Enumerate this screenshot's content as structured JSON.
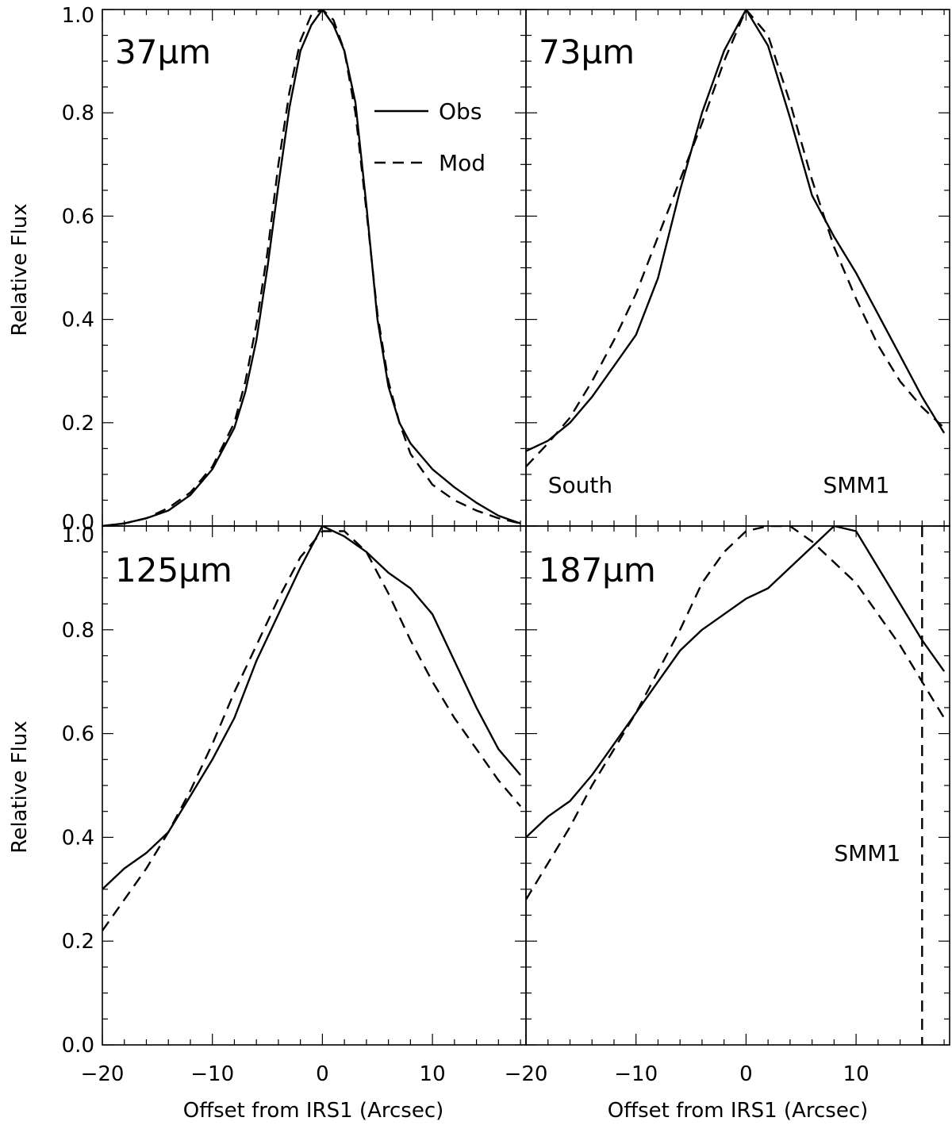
{
  "figure": {
    "ylabel": "Relative Flux",
    "xlabel": "Offset from IRS1 (Arcsec)"
  },
  "chart_data": [
    {
      "type": "line",
      "panel": "37µm",
      "xlim": [
        -20,
        18.5
      ],
      "ylim": [
        0,
        1
      ],
      "xticks": [],
      "yticks": [
        "0.0",
        "0.2",
        "0.4",
        "0.6",
        "0.8",
        "1.0"
      ],
      "legend": {
        "position": "top-right",
        "entries": [
          {
            "label": "Obs",
            "style": "solid"
          },
          {
            "label": "Mod",
            "style": "dashed"
          }
        ]
      },
      "annotations": [],
      "vline": null,
      "series": [
        {
          "name": "Obs",
          "style": "solid",
          "points": [
            [
              -20,
              0.0
            ],
            [
              -18,
              0.005
            ],
            [
              -16,
              0.015
            ],
            [
              -14,
              0.03
            ],
            [
              -12,
              0.06
            ],
            [
              -10,
              0.11
            ],
            [
              -8,
              0.19
            ],
            [
              -7,
              0.26
            ],
            [
              -6,
              0.36
            ],
            [
              -5,
              0.5
            ],
            [
              -4,
              0.66
            ],
            [
              -3,
              0.81
            ],
            [
              -2,
              0.92
            ],
            [
              -1,
              0.97
            ],
            [
              0,
              1.0
            ],
            [
              1,
              0.97
            ],
            [
              2,
              0.92
            ],
            [
              3,
              0.82
            ],
            [
              4,
              0.62
            ],
            [
              5,
              0.4
            ],
            [
              6,
              0.27
            ],
            [
              7,
              0.2
            ],
            [
              8,
              0.16
            ],
            [
              10,
              0.11
            ],
            [
              12,
              0.075
            ],
            [
              14,
              0.045
            ],
            [
              16,
              0.02
            ],
            [
              18,
              0.005
            ]
          ]
        },
        {
          "name": "Mod",
          "style": "dashed",
          "points": [
            [
              -20,
              0.0
            ],
            [
              -18,
              0.005
            ],
            [
              -16,
              0.015
            ],
            [
              -14,
              0.035
            ],
            [
              -12,
              0.065
            ],
            [
              -10,
              0.115
            ],
            [
              -8,
              0.2
            ],
            [
              -7,
              0.28
            ],
            [
              -6,
              0.39
            ],
            [
              -5,
              0.53
            ],
            [
              -4,
              0.7
            ],
            [
              -3,
              0.84
            ],
            [
              -2,
              0.94
            ],
            [
              -1,
              0.99
            ],
            [
              0,
              1.0
            ],
            [
              1,
              0.98
            ],
            [
              2,
              0.92
            ],
            [
              3,
              0.8
            ],
            [
              4,
              0.61
            ],
            [
              5,
              0.41
            ],
            [
              6,
              0.28
            ],
            [
              7,
              0.2
            ],
            [
              8,
              0.14
            ],
            [
              10,
              0.08
            ],
            [
              12,
              0.05
            ],
            [
              14,
              0.03
            ],
            [
              16,
              0.015
            ],
            [
              18,
              0.005
            ]
          ]
        }
      ]
    },
    {
      "type": "line",
      "panel": "73µm",
      "xlim": [
        -20,
        18.5
      ],
      "ylim": [
        0,
        1
      ],
      "xticks": [],
      "yticks": [],
      "legend": null,
      "annotations": [
        {
          "text": "South",
          "x": -18,
          "y": 0.08
        },
        {
          "text": "SMM1",
          "x": 7,
          "y": 0.08
        }
      ],
      "vline": null,
      "series": [
        {
          "name": "Obs",
          "style": "solid",
          "points": [
            [
              -20,
              0.145
            ],
            [
              -18,
              0.165
            ],
            [
              -16,
              0.2
            ],
            [
              -14,
              0.25
            ],
            [
              -12,
              0.31
            ],
            [
              -10,
              0.37
            ],
            [
              -8,
              0.48
            ],
            [
              -6,
              0.65
            ],
            [
              -4,
              0.8
            ],
            [
              -2,
              0.92
            ],
            [
              0,
              1.0
            ],
            [
              2,
              0.93
            ],
            [
              4,
              0.79
            ],
            [
              6,
              0.64
            ],
            [
              8,
              0.56
            ],
            [
              10,
              0.49
            ],
            [
              12,
              0.41
            ],
            [
              14,
              0.33
            ],
            [
              16,
              0.25
            ],
            [
              18,
              0.18
            ]
          ]
        },
        {
          "name": "Mod",
          "style": "dashed",
          "points": [
            [
              -20,
              0.115
            ],
            [
              -18,
              0.16
            ],
            [
              -16,
              0.21
            ],
            [
              -14,
              0.28
            ],
            [
              -12,
              0.36
            ],
            [
              -10,
              0.45
            ],
            [
              -8,
              0.56
            ],
            [
              -6,
              0.67
            ],
            [
              -4,
              0.78
            ],
            [
              -2,
              0.9
            ],
            [
              0,
              1.0
            ],
            [
              2,
              0.95
            ],
            [
              4,
              0.82
            ],
            [
              6,
              0.67
            ],
            [
              8,
              0.54
            ],
            [
              10,
              0.44
            ],
            [
              12,
              0.35
            ],
            [
              14,
              0.28
            ],
            [
              16,
              0.23
            ],
            [
              18,
              0.19
            ]
          ]
        }
      ]
    },
    {
      "type": "line",
      "panel": "125µm",
      "xlim": [
        -20,
        18.5
      ],
      "ylim": [
        0,
        1
      ],
      "xticks": [
        "−20",
        "−10",
        "0",
        "10"
      ],
      "yticks": [
        "0.0",
        "0.2",
        "0.4",
        "0.6",
        "0.8",
        "1.0"
      ],
      "legend": null,
      "annotations": [],
      "vline": null,
      "series": [
        {
          "name": "Obs",
          "style": "solid",
          "points": [
            [
              -20,
              0.3
            ],
            [
              -18,
              0.34
            ],
            [
              -16,
              0.37
            ],
            [
              -14,
              0.41
            ],
            [
              -12,
              0.48
            ],
            [
              -10,
              0.55
            ],
            [
              -8,
              0.63
            ],
            [
              -6,
              0.74
            ],
            [
              -4,
              0.83
            ],
            [
              -2,
              0.92
            ],
            [
              0,
              1.0
            ],
            [
              2,
              0.98
            ],
            [
              4,
              0.95
            ],
            [
              6,
              0.91
            ],
            [
              8,
              0.88
            ],
            [
              10,
              0.83
            ],
            [
              12,
              0.74
            ],
            [
              14,
              0.65
            ],
            [
              16,
              0.57
            ],
            [
              18,
              0.52
            ]
          ]
        },
        {
          "name": "Mod",
          "style": "dashed",
          "points": [
            [
              -20,
              0.22
            ],
            [
              -18,
              0.28
            ],
            [
              -16,
              0.34
            ],
            [
              -14,
              0.41
            ],
            [
              -12,
              0.49
            ],
            [
              -10,
              0.58
            ],
            [
              -8,
              0.68
            ],
            [
              -6,
              0.77
            ],
            [
              -4,
              0.86
            ],
            [
              -2,
              0.94
            ],
            [
              0,
              0.99
            ],
            [
              2,
              0.99
            ],
            [
              4,
              0.95
            ],
            [
              6,
              0.87
            ],
            [
              8,
              0.78
            ],
            [
              10,
              0.7
            ],
            [
              12,
              0.63
            ],
            [
              14,
              0.57
            ],
            [
              16,
              0.51
            ],
            [
              18,
              0.46
            ]
          ]
        }
      ]
    },
    {
      "type": "line",
      "panel": "187µm",
      "xlim": [
        -20,
        18.5
      ],
      "ylim": [
        0,
        1
      ],
      "xticks": [
        "−20",
        "−10",
        "0",
        "10"
      ],
      "yticks": [],
      "legend": null,
      "annotations": [
        {
          "text": "SMM1",
          "x": 8,
          "y": 0.37
        }
      ],
      "vline": {
        "x": 16,
        "style": "dashed"
      },
      "series": [
        {
          "name": "Obs",
          "style": "solid",
          "points": [
            [
              -20,
              0.4
            ],
            [
              -18,
              0.44
            ],
            [
              -16,
              0.47
            ],
            [
              -14,
              0.52
            ],
            [
              -12,
              0.58
            ],
            [
              -10,
              0.64
            ],
            [
              -8,
              0.7
            ],
            [
              -6,
              0.76
            ],
            [
              -4,
              0.8
            ],
            [
              -2,
              0.83
            ],
            [
              0,
              0.86
            ],
            [
              2,
              0.88
            ],
            [
              4,
              0.92
            ],
            [
              6,
              0.96
            ],
            [
              8,
              1.0
            ],
            [
              10,
              0.99
            ],
            [
              12,
              0.92
            ],
            [
              14,
              0.85
            ],
            [
              16,
              0.78
            ],
            [
              18,
              0.72
            ]
          ]
        },
        {
          "name": "Mod",
          "style": "dashed",
          "points": [
            [
              -20,
              0.28
            ],
            [
              -18,
              0.35
            ],
            [
              -16,
              0.42
            ],
            [
              -14,
              0.5
            ],
            [
              -12,
              0.57
            ],
            [
              -10,
              0.64
            ],
            [
              -8,
              0.72
            ],
            [
              -6,
              0.8
            ],
            [
              -4,
              0.89
            ],
            [
              -2,
              0.95
            ],
            [
              0,
              0.99
            ],
            [
              2,
              1.0
            ],
            [
              4,
              1.0
            ],
            [
              6,
              0.97
            ],
            [
              8,
              0.93
            ],
            [
              10,
              0.89
            ],
            [
              12,
              0.83
            ],
            [
              14,
              0.77
            ],
            [
              16,
              0.7
            ],
            [
              18,
              0.63
            ]
          ]
        }
      ]
    }
  ]
}
